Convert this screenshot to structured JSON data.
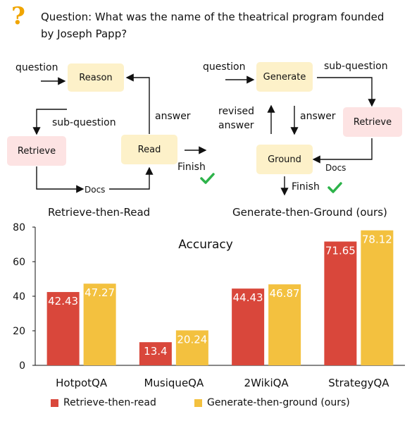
{
  "question": {
    "icon": "question-mark-icon",
    "text": "Question: What was the name of the theatrical program founded by Joseph Papp?"
  },
  "left_diagram": {
    "title": "Retrieve-then-Read",
    "nodes": {
      "reason": "Reason",
      "retrieve": "Retrieve",
      "read": "Read"
    },
    "labels": {
      "question": "question",
      "sub_question": "sub-question",
      "answer": "answer",
      "docs": "Docs",
      "finish": "Finish"
    }
  },
  "right_diagram": {
    "title": "Generate-then-Ground (ours)",
    "nodes": {
      "generate": "Generate",
      "retrieve": "Retrieve",
      "ground": "Ground"
    },
    "labels": {
      "question": "question",
      "sub_question": "sub-question",
      "revised_answer_1": "revised",
      "revised_answer_2": "answer",
      "answer": "answer",
      "docs": "Docs",
      "finish": "Finish"
    }
  },
  "colors": {
    "red": "#d9473b",
    "yellow": "#f3c13f",
    "check": "#2db34a",
    "node_yellow": "#fdf1c9",
    "node_pink": "#fde3e3"
  },
  "chart_data": {
    "type": "bar",
    "title": "Accuracy",
    "categories": [
      "HotpotQA",
      "MusiqueQA",
      "2WikiQA",
      "StrategyQA"
    ],
    "series": [
      {
        "name": "Retrieve-then-read",
        "values": [
          42.43,
          13.4,
          44.43,
          71.65
        ]
      },
      {
        "name": "Generate-then-ground (ours)",
        "values": [
          47.27,
          20.24,
          46.87,
          78.12
        ]
      }
    ],
    "ylim": [
      0,
      80
    ],
    "yticks": [
      0,
      20,
      40,
      60,
      80
    ],
    "grid": false,
    "legend": "bottom"
  }
}
